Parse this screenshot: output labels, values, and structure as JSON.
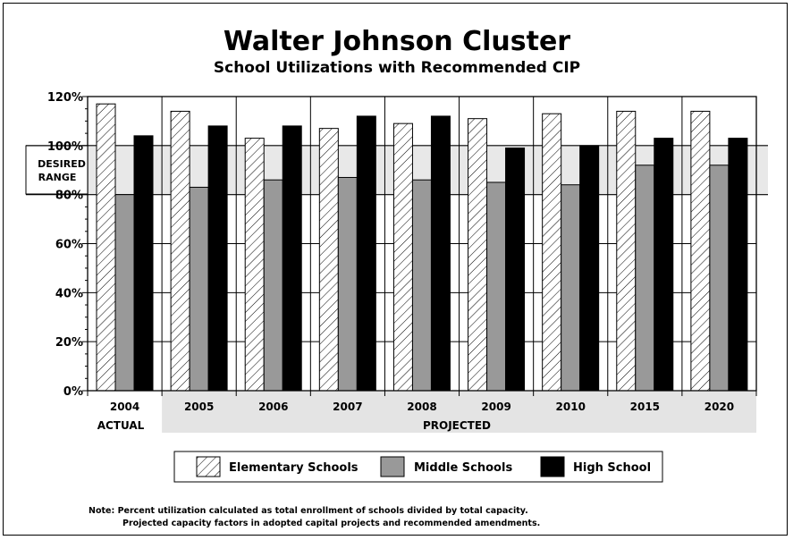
{
  "chart_data": {
    "type": "bar",
    "title": "Walter Johnson Cluster",
    "subtitle": "School Utilizations with Recommended CIP",
    "categories": [
      "2004",
      "2005",
      "2006",
      "2007",
      "2008",
      "2009",
      "2010",
      "2015",
      "2020"
    ],
    "category_groups": [
      "ACTUAL",
      "PROJECTED"
    ],
    "series": [
      {
        "name": "Elementary Schools",
        "values": [
          117,
          114,
          103,
          107,
          109,
          111,
          113,
          114,
          114
        ]
      },
      {
        "name": "Middle Schools",
        "values": [
          80,
          83,
          86,
          87,
          86,
          85,
          84,
          92,
          92
        ]
      },
      {
        "name": "High School",
        "values": [
          104,
          108,
          108,
          112,
          112,
          99,
          100,
          103,
          103
        ]
      }
    ],
    "ylim": [
      0,
      120
    ],
    "yticks": [
      "0%",
      "20%",
      "40%",
      "60%",
      "80%",
      "100%",
      "120%"
    ],
    "desired_range": {
      "label_line1": "DESIRED",
      "label_line2": "RANGE",
      "low": 80,
      "high": 100
    },
    "legend_position": "bottom",
    "grid": true,
    "note_line1": "Note:  Percent utilization calculated as total enrollment of schools divided by total capacity.",
    "note_line2": "Projected capacity factors in adopted capital projects and recommended amendments.",
    "colors": {
      "elementary": "#ffffff",
      "middle": "#999999",
      "high": "#000000",
      "range_band": "#e8e8e8",
      "axis_band": "#e4e4e4"
    }
  }
}
